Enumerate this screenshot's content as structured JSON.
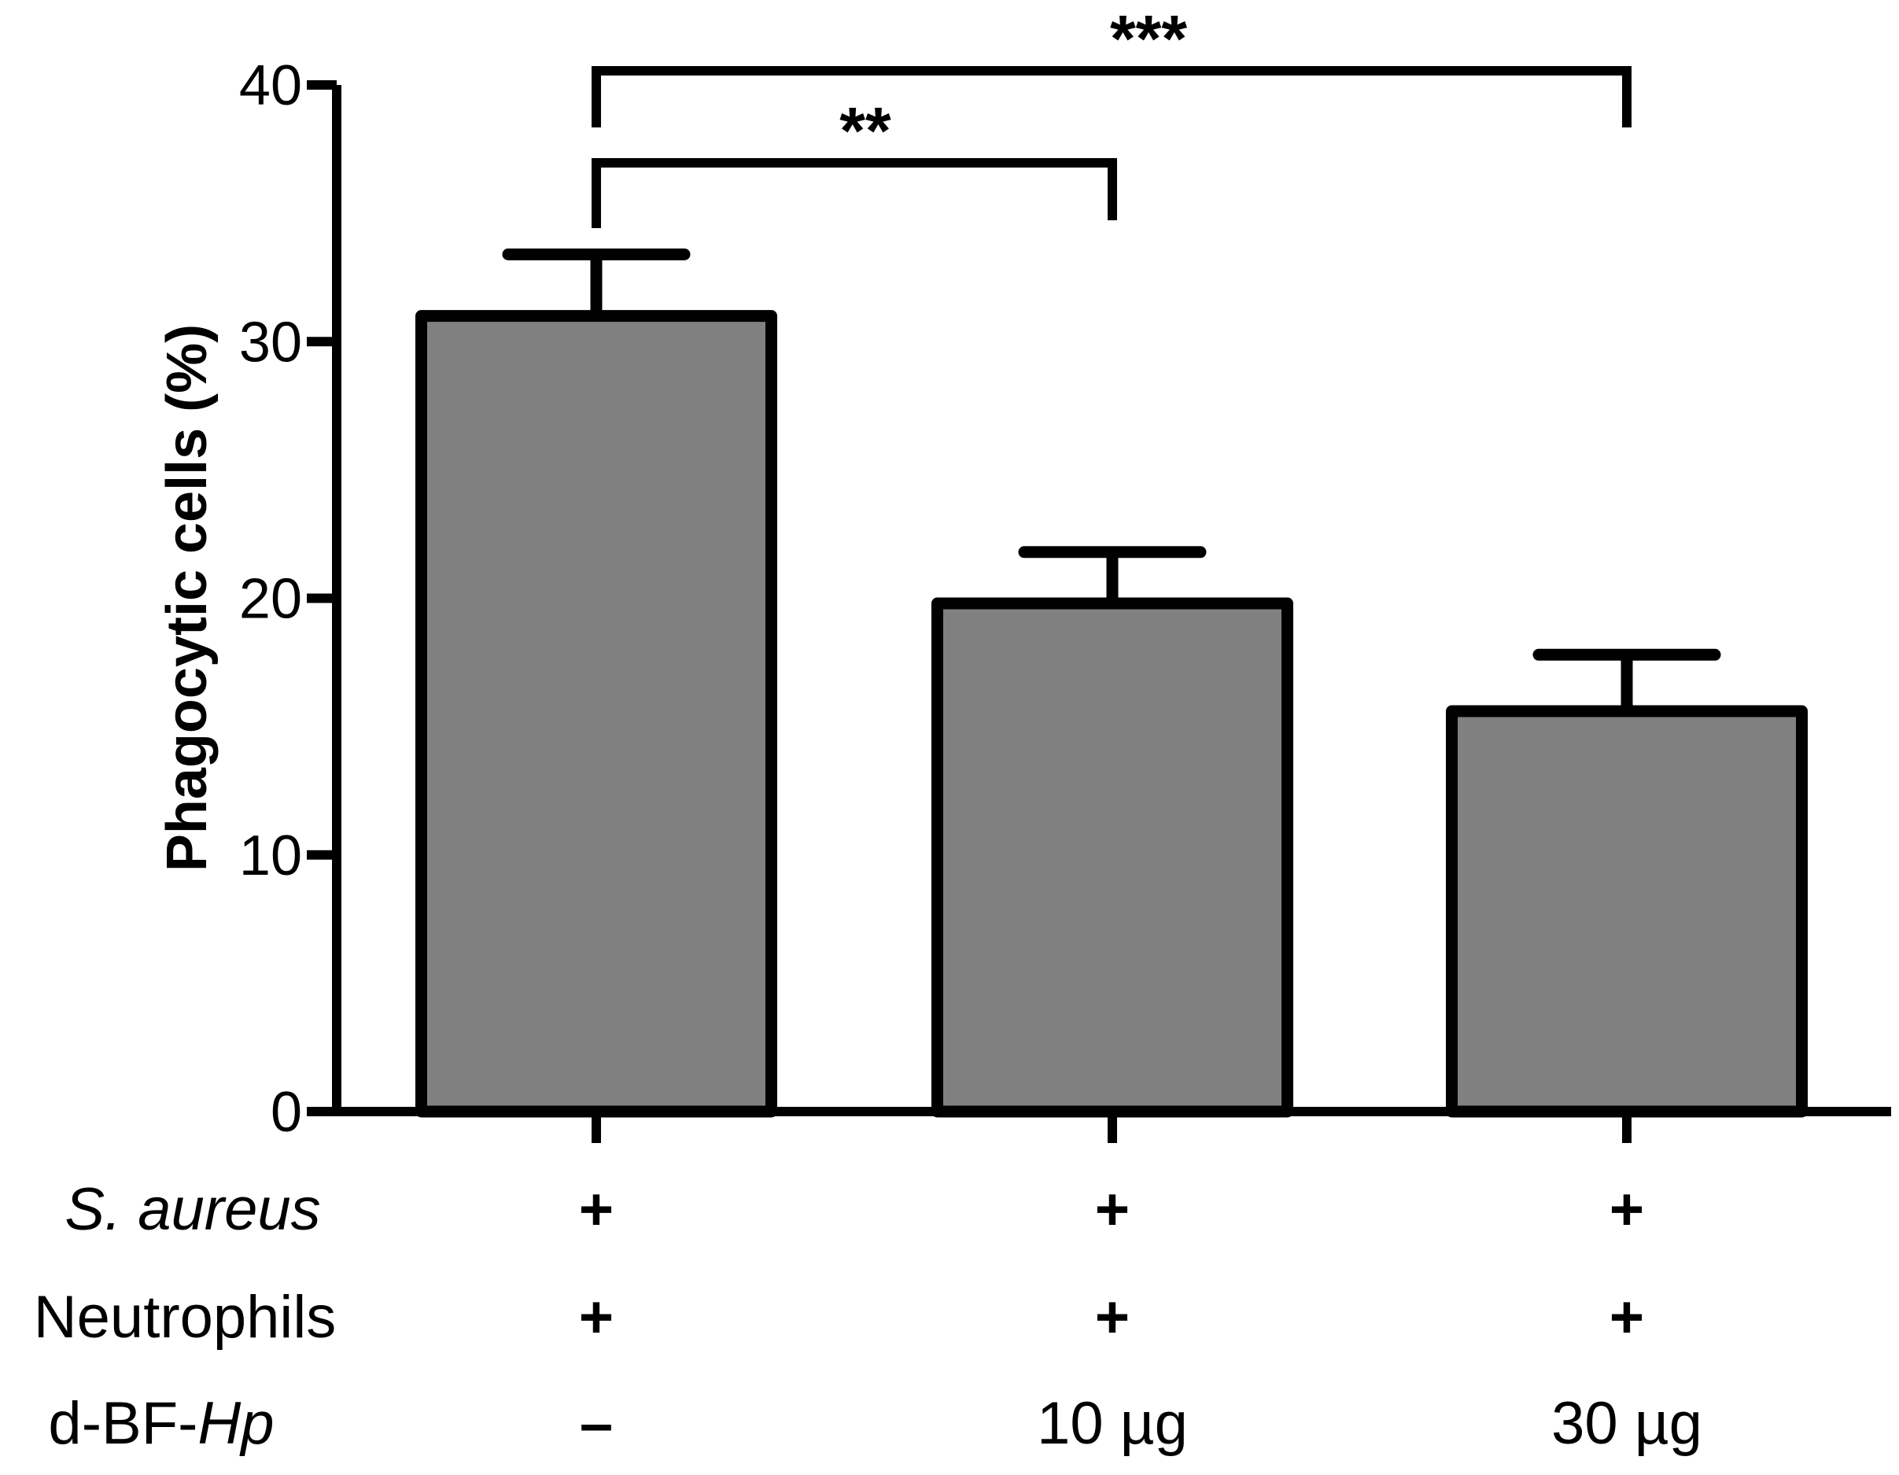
{
  "chart_data": {
    "type": "bar",
    "title": "",
    "ylabel": "Phagocytic cells (%)",
    "xlabel": "",
    "ylim": [
      0,
      40
    ],
    "yticks": [
      0,
      10,
      20,
      30,
      40
    ],
    "grid": false,
    "legend": "none",
    "categories": [
      "S. aureus + Neutrophils",
      "d-BF-Hp 10 µg",
      "d-BF-Hp 30 µg"
    ],
    "values": [
      31,
      19.8,
      15.6
    ],
    "errors": [
      2.4,
      2.0,
      2.2
    ],
    "colors": {
      "bar_fill": "#808080",
      "stroke": "#000000"
    },
    "condition_rows": [
      {
        "label": "S. aureus",
        "italic": "full",
        "values": [
          "+",
          "+",
          "+"
        ]
      },
      {
        "label": "Neutrophils",
        "italic": "none",
        "values": [
          "+",
          "+",
          "+"
        ]
      },
      {
        "label_prefix": "d-BF-",
        "label_italic": "Hp",
        "values": [
          "–",
          "10 µg",
          "30 µg"
        ]
      }
    ],
    "significance": [
      {
        "from": 0,
        "to": 1,
        "label": "**"
      },
      {
        "from": 0,
        "to": 2,
        "label": "***"
      }
    ]
  }
}
